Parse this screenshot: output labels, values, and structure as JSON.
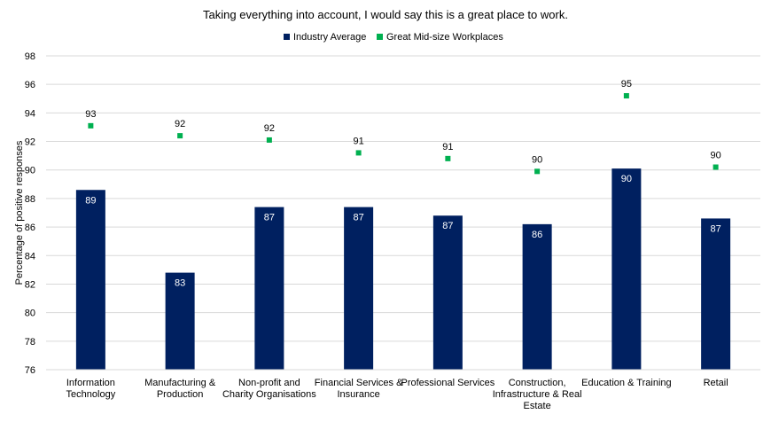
{
  "chart_data": {
    "type": "bar",
    "title": "Taking everything into account, I would say this is a great place to work.",
    "xlabel": "",
    "ylabel": "Percentage of positive responses",
    "ylim": [
      76,
      98
    ],
    "ytick_step": 2,
    "yticks": [
      "76",
      "78",
      "80",
      "82",
      "84",
      "86",
      "88",
      "90",
      "92",
      "94",
      "96",
      "98"
    ],
    "grid": true,
    "legend_position": "top",
    "categories": [
      [
        "Information",
        "Technology"
      ],
      [
        "Manufacturing &",
        "Production"
      ],
      [
        "Non-profit and",
        "Charity Organisations"
      ],
      [
        "Financial Services &",
        "Insurance"
      ],
      [
        "Professional Services"
      ],
      [
        "Construction,",
        "Infrastructure & Real",
        "Estate"
      ],
      [
        "Education & Training"
      ],
      [
        "Retail"
      ]
    ],
    "series": [
      {
        "name": "Industry Average",
        "mark": "bar",
        "color": "#002060",
        "values": [
          88.6,
          82.8,
          87.4,
          87.4,
          86.8,
          86.2,
          90.1,
          86.6
        ],
        "labels": [
          "89",
          "83",
          "87",
          "87",
          "87",
          "86",
          "90",
          "87"
        ]
      },
      {
        "name": "Great Mid-size Workplaces",
        "mark": "square-marker",
        "color": "#00B050",
        "values": [
          93.1,
          92.4,
          92.1,
          91.2,
          90.8,
          89.9,
          95.2,
          90.2
        ],
        "labels": [
          "93",
          "92",
          "92",
          "91",
          "91",
          "90",
          "95",
          "90"
        ]
      }
    ]
  }
}
